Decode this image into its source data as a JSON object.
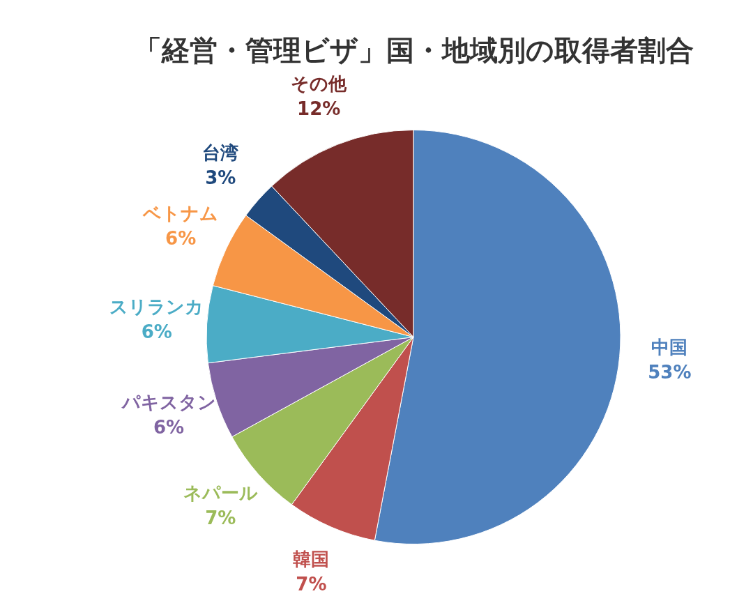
{
  "chart_data": {
    "type": "pie",
    "title": "「経営・管理ビザ」国・地域別の取得者割合",
    "categories": [
      "中国",
      "韓国",
      "ネパール",
      "パキスタン",
      "スリランカ",
      "ベトナム",
      "台湾",
      "その他"
    ],
    "values": [
      53,
      7,
      7,
      6,
      6,
      6,
      3,
      12
    ],
    "colors": [
      "#4f81bd",
      "#c0504d",
      "#9bbb59",
      "#8064a2",
      "#4bacc6",
      "#f79646",
      "#1f497d",
      "#772c2a"
    ],
    "value_labels": [
      "53%",
      "7%",
      "7%",
      "6%",
      "6%",
      "6%",
      "3%",
      "12%"
    ],
    "legend": false
  }
}
